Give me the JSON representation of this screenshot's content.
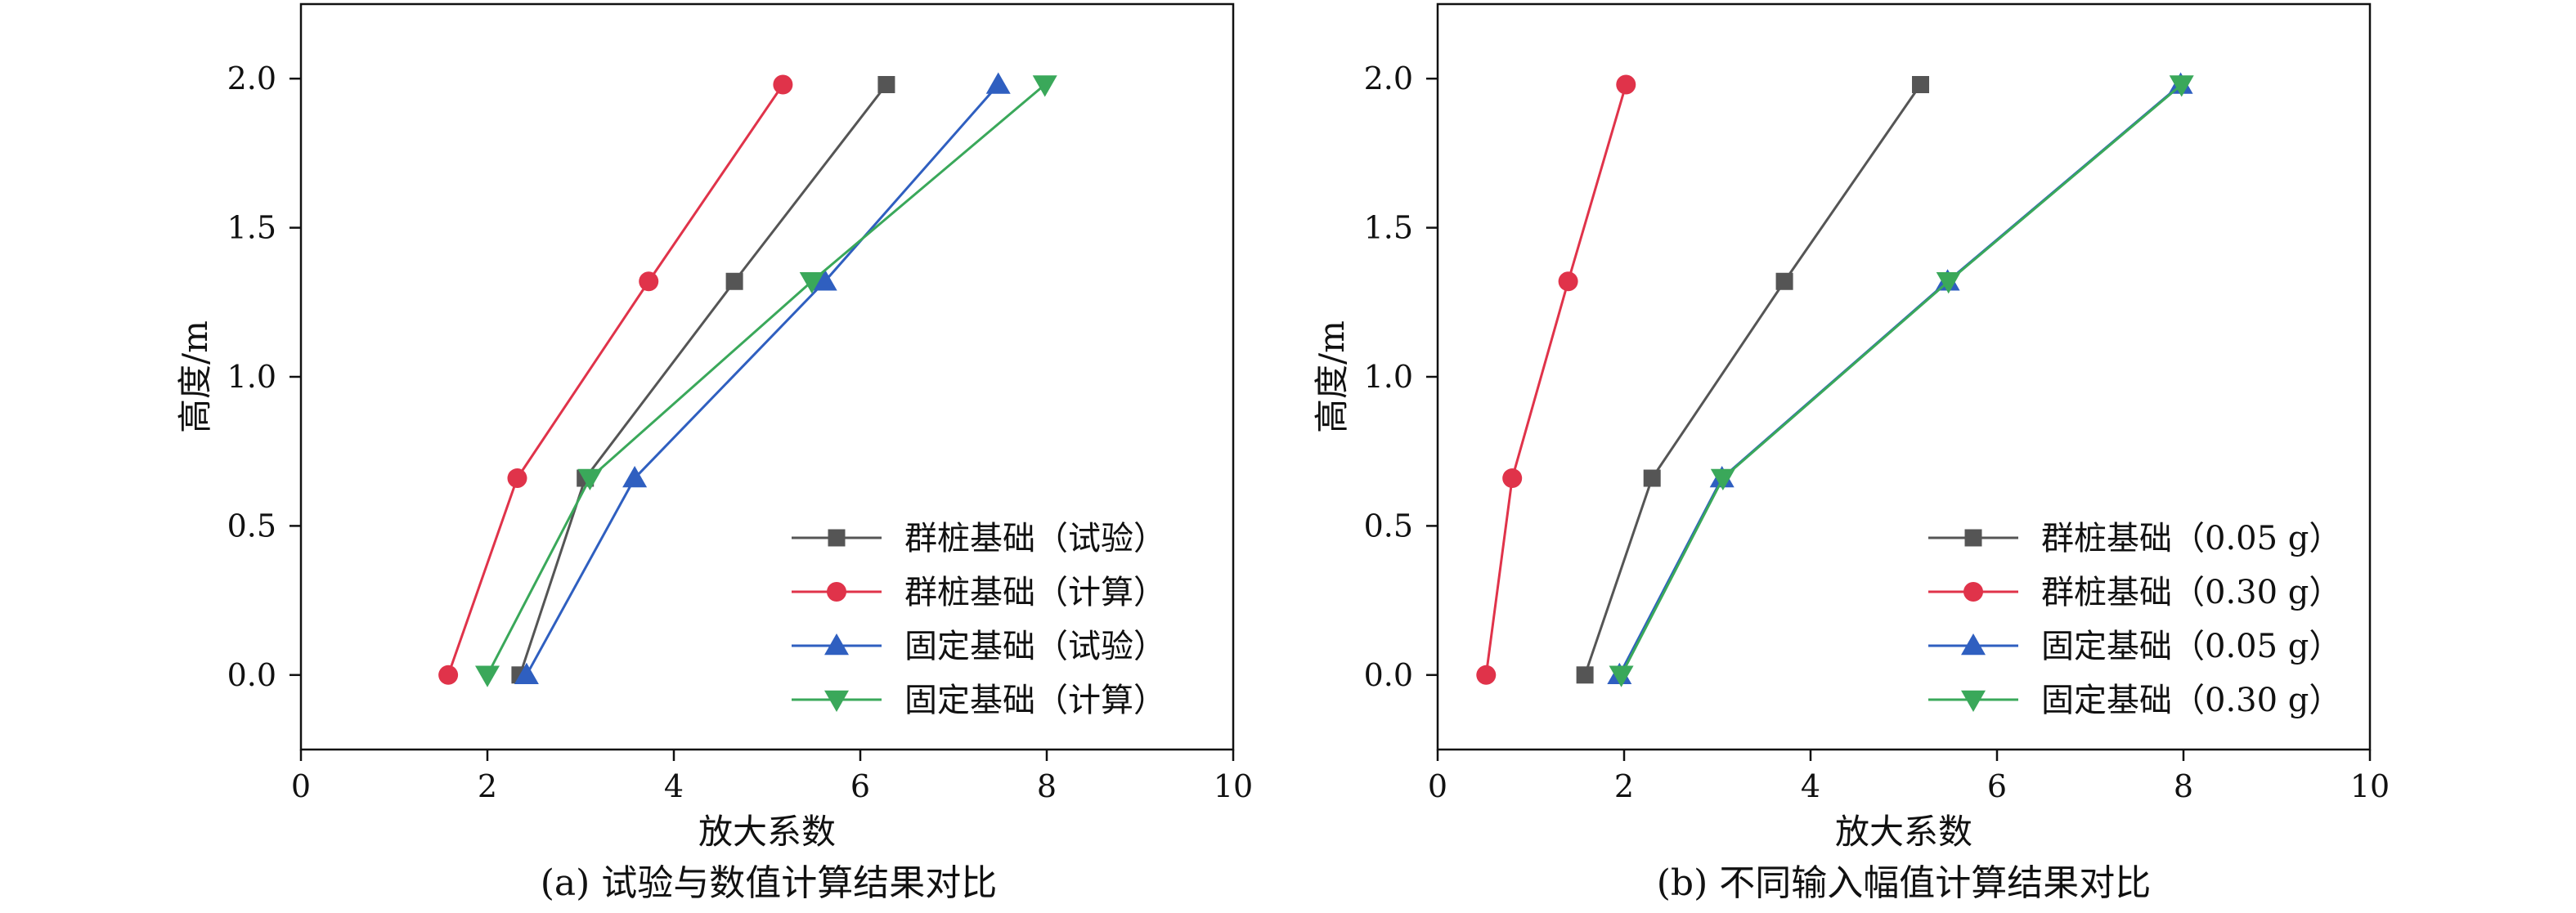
{
  "chart_data": [
    {
      "type": "line",
      "caption": "(a) 试验与数值计算结果对比",
      "xlabel": "放大系数",
      "ylabel": "高度/m",
      "xlim": [
        0,
        10
      ],
      "ylim": [
        -0.25,
        2.25
      ],
      "xticks": [
        "0",
        "2",
        "4",
        "6",
        "8",
        "10"
      ],
      "yticks": [
        "0.0",
        "0.5",
        "1.0",
        "1.5",
        "2.0"
      ],
      "legend_position": "bottom-right",
      "series": [
        {
          "name": "群桩基础（试验）",
          "color": "#555555",
          "marker": "square",
          "x": [
            2.35,
            3.05,
            4.65,
            6.28
          ],
          "y": [
            0.0,
            0.66,
            1.32,
            1.98
          ]
        },
        {
          "name": "群桩基础（计算）",
          "color": "#e0334a",
          "marker": "circle",
          "x": [
            1.58,
            2.32,
            3.73,
            5.17
          ],
          "y": [
            0.0,
            0.66,
            1.32,
            1.98
          ]
        },
        {
          "name": "固定基础（试验）",
          "color": "#2f5fc0",
          "marker": "triangle-up",
          "x": [
            2.42,
            3.58,
            5.62,
            7.48
          ],
          "y": [
            0.0,
            0.66,
            1.32,
            1.98
          ]
        },
        {
          "name": "固定基础（计算）",
          "color": "#3aa85a",
          "marker": "triangle-down",
          "x": [
            2.0,
            3.1,
            5.48,
            7.98
          ],
          "y": [
            0.0,
            0.66,
            1.32,
            1.98
          ]
        }
      ]
    },
    {
      "type": "line",
      "caption": "(b) 不同输入幅值计算结果对比",
      "xlabel": "放大系数",
      "ylabel": "高度/m",
      "xlim": [
        0,
        10
      ],
      "ylim": [
        -0.25,
        2.25
      ],
      "xticks": [
        "0",
        "2",
        "4",
        "6",
        "8",
        "10"
      ],
      "yticks": [
        "0.0",
        "0.5",
        "1.0",
        "1.5",
        "2.0"
      ],
      "legend_position": "bottom-right",
      "series": [
        {
          "name": "群桩基础（0.05 g）",
          "color": "#555555",
          "marker": "square",
          "x": [
            1.58,
            2.3,
            3.72,
            5.18
          ],
          "y": [
            0.0,
            0.66,
            1.32,
            1.98
          ]
        },
        {
          "name": "群桩基础（0.30 g）",
          "color": "#e0334a",
          "marker": "circle",
          "x": [
            0.52,
            0.8,
            1.4,
            2.02
          ],
          "y": [
            0.0,
            0.66,
            1.32,
            1.98
          ]
        },
        {
          "name": "固定基础（0.05 g）",
          "color": "#2f5fc0",
          "marker": "triangle-up",
          "x": [
            1.95,
            3.05,
            5.47,
            7.97
          ],
          "y": [
            0.0,
            0.66,
            1.32,
            1.98
          ]
        },
        {
          "name": "固定基础（0.30 g）",
          "color": "#3aa85a",
          "marker": "triangle-down",
          "x": [
            1.97,
            3.06,
            5.48,
            7.98
          ],
          "y": [
            0.0,
            0.66,
            1.32,
            1.98
          ]
        }
      ]
    }
  ]
}
